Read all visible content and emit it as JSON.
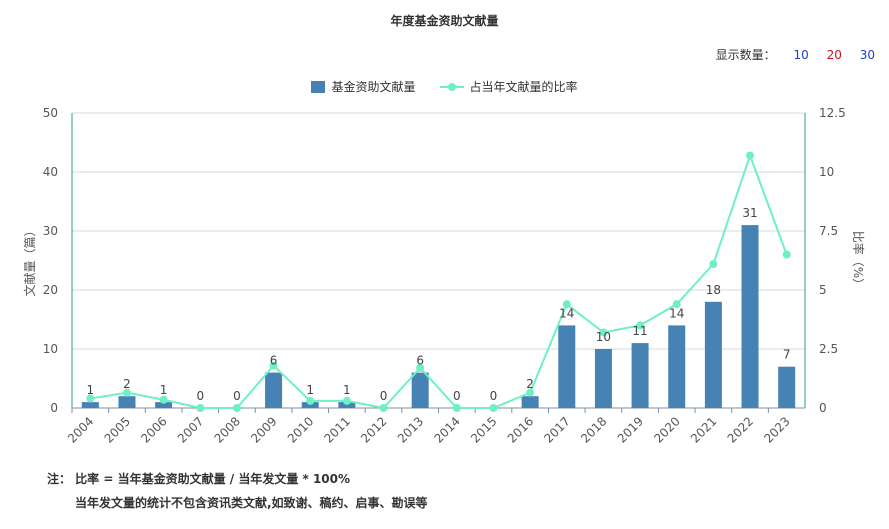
{
  "title": "年度基金资助文献量",
  "show_count": {
    "label": "显示数量：",
    "options": [
      "10",
      "20",
      "30"
    ]
  },
  "legend": {
    "bar": "基金资助文献量",
    "line": "占当年文献量的比率"
  },
  "notes": {
    "line1": "注： 比率 = 当年基金资助文献量 / 当年发文量 * 100%",
    "line2": "当年发文量的统计不包含资讯类文献,如致谢、稿约、启事、勘误等"
  },
  "colors": {
    "bar": "#4682b4",
    "line": "#6ef0c4",
    "grid": "#d9d9d9",
    "axis": "#2a9d8f"
  },
  "chart_data": {
    "type": "bar",
    "title": "年度基金资助文献量",
    "categories": [
      "2004",
      "2005",
      "2006",
      "2007",
      "2008",
      "2009",
      "2010",
      "2011",
      "2012",
      "2013",
      "2014",
      "2015",
      "2016",
      "2017",
      "2018",
      "2019",
      "2020",
      "2021",
      "2022",
      "2023"
    ],
    "series": [
      {
        "name": "基金资助文献量",
        "type": "bar",
        "axis": "left",
        "values": [
          1,
          2,
          1,
          0,
          0,
          6,
          1,
          1,
          0,
          6,
          0,
          0,
          2,
          14,
          10,
          11,
          14,
          18,
          31,
          7
        ]
      },
      {
        "name": "占当年文献量的比率",
        "type": "line",
        "axis": "right",
        "values": [
          0.4,
          0.65,
          0.35,
          0,
          0,
          1.8,
          0.3,
          0.3,
          0,
          1.7,
          0,
          0,
          0.65,
          4.4,
          3.2,
          3.5,
          4.4,
          6.1,
          10.7,
          6.5
        ]
      }
    ],
    "ylabel": "文献量（篇）",
    "ylabel_right": "比率（%）",
    "ylim": [
      0,
      50
    ],
    "yticks": [
      "0",
      "10",
      "20",
      "30",
      "40",
      "50"
    ],
    "ylim_right": [
      0,
      12.5
    ],
    "yticks_right": [
      "0",
      "2.5",
      "5",
      "7.5",
      "10",
      "12.5"
    ],
    "grid": true,
    "legend_position": "top"
  }
}
